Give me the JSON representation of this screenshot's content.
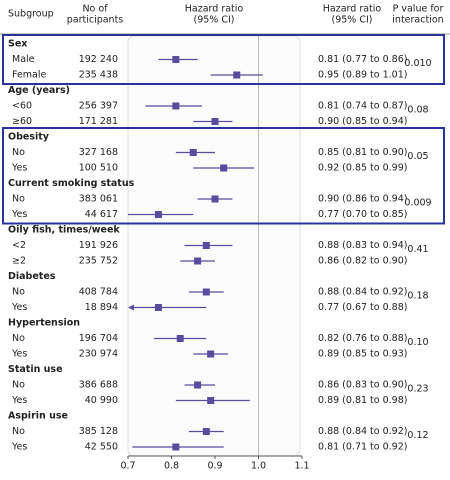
{
  "chart_data": {
    "type": "forest",
    "headers": {
      "subgroup": "Subgroup",
      "participants": [
        "No of",
        "participants"
      ],
      "plot": [
        "Hazard ratio",
        "(95% CI)"
      ],
      "hr": [
        "Hazard ratio",
        "(95% CI)"
      ],
      "p": [
        "P value for",
        "interaction"
      ]
    },
    "color": "#5a4b9c",
    "xlim": [
      0.7,
      1.1
    ],
    "xticks": [
      0.7,
      0.8,
      0.9,
      {
        "value": 1.0,
        "label": "1.0"
      },
      1.1
    ],
    "groups": [
      {
        "name": "Sex",
        "p": {
          "value": 0.01,
          "label": "0.010"
        },
        "rows": [
          {
            "label": "Male",
            "n": "192 240",
            "hr": 0.81,
            "lo": 0.77,
            "hi": 0.86,
            "hr_label": "0.81 (0.77 to 0.86)"
          },
          {
            "label": "Female",
            "n": "235 438",
            "hr": 0.95,
            "lo": 0.89,
            "hi": 1.01,
            "hr_label": "0.95 (0.89 to 1.01)"
          }
        ]
      },
      {
        "name": "Age (years)",
        "p": 0.08,
        "rows": [
          {
            "label": "<60",
            "n": "256 397",
            "hr": 0.81,
            "lo": 0.74,
            "hi": 0.87,
            "hr_label": "0.81 (0.74 to 0.87)"
          },
          {
            "label": "≥60",
            "n": "171 281",
            "hr": 0.9,
            "lo": 0.85,
            "hi": 0.94,
            "hr_label": "0.90 (0.85 to 0.94)"
          }
        ]
      },
      {
        "name": "Obesity",
        "p": 0.05,
        "rows": [
          {
            "label": "No",
            "n": "327 168",
            "hr": 0.85,
            "lo": 0.81,
            "hi": 0.9,
            "hr_label": "0.85 (0.81 to 0.90)"
          },
          {
            "label": "Yes",
            "n": "100 510",
            "hr": 0.92,
            "lo": 0.85,
            "hi": 0.99,
            "hr_label": "0.92 (0.85 to 0.99)"
          }
        ]
      },
      {
        "name": "Current smoking status",
        "p": 0.009,
        "rows": [
          {
            "label": "No",
            "n": "383 061",
            "hr": 0.9,
            "lo": 0.86,
            "hi": 0.94,
            "hr_label": "0.90 (0.86 to 0.94)"
          },
          {
            "label": "Yes",
            "n": "44 617",
            "hr": 0.77,
            "lo": 0.7,
            "hi": 0.85,
            "hr_label": "0.77 (0.70 to 0.85)"
          }
        ]
      },
      {
        "name": "Oily fish, times/week",
        "p": 0.41,
        "rows": [
          {
            "label": "<2",
            "n": "191 926",
            "hr": 0.88,
            "lo": 0.83,
            "hi": 0.94,
            "hr_label": "0.88 (0.83 to 0.94)"
          },
          {
            "label": "≥2",
            "n": "235 752",
            "hr": 0.86,
            "lo": 0.82,
            "hi": 0.9,
            "hr_label": "0.86 (0.82 to 0.90)"
          }
        ]
      },
      {
        "name": "Diabetes",
        "p": 0.18,
        "rows": [
          {
            "label": "No",
            "n": "408 784",
            "hr": 0.88,
            "lo": 0.84,
            "hi": 0.92,
            "hr_label": "0.88 (0.84 to 0.92)"
          },
          {
            "label": "Yes",
            "n": "18 894",
            "hr": 0.77,
            "lo": 0.67,
            "hi": 0.88,
            "hr_label": "0.77 (0.67 to 0.88)"
          }
        ]
      },
      {
        "name": "Hypertension",
        "p": {
          "value": 0.1,
          "label": "0.10"
        },
        "rows": [
          {
            "label": "No",
            "n": "196 704",
            "hr": 0.82,
            "lo": 0.76,
            "hi": 0.88,
            "hr_label": "0.82 (0.76 to 0.88)"
          },
          {
            "label": "Yes",
            "n": "230 974",
            "hr": 0.89,
            "lo": 0.85,
            "hi": 0.93,
            "hr_label": "0.89 (0.85 to 0.93)"
          }
        ]
      },
      {
        "name": "Statin use",
        "p": 0.23,
        "rows": [
          {
            "label": "No",
            "n": "386 688",
            "hr": 0.86,
            "lo": 0.83,
            "hi": 0.9,
            "hr_label": "0.86 (0.83 to 0.90)"
          },
          {
            "label": "Yes",
            "n": "40 990",
            "hr": 0.89,
            "lo": 0.81,
            "hi": 0.98,
            "hr_label": "0.89 (0.81 to 0.98)"
          }
        ]
      },
      {
        "name": "Aspirin use",
        "p": 0.12,
        "rows": [
          {
            "label": "No",
            "n": "385 128",
            "hr": 0.88,
            "lo": 0.84,
            "hi": 0.92,
            "hr_label": "0.88 (0.84 to 0.92)"
          },
          {
            "label": "Yes",
            "n": "42 550",
            "hr": 0.81,
            "lo": 0.71,
            "hi": 0.92,
            "hr_label": "0.81 (0.71 to 0.92)"
          }
        ]
      }
    ]
  }
}
